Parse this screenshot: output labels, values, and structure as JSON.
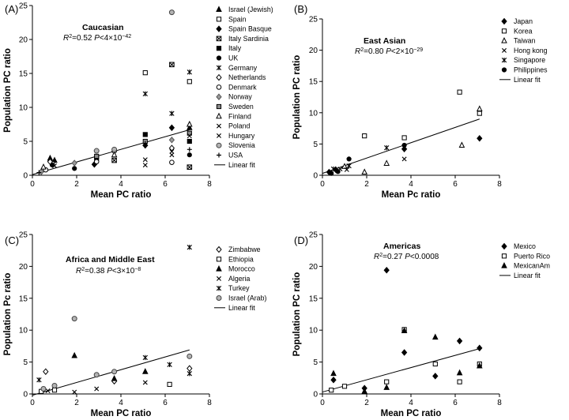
{
  "chart_data": [
    {
      "panel": "(A)",
      "type": "scatter",
      "title": "Caucasian",
      "stat": {
        "r2": "0.52",
        "p": "4",
        "exp": "−42"
      },
      "xlabel": "Mean PC ratio",
      "ylabel": "Population PC ratio",
      "xlim": [
        0,
        8
      ],
      "ylim": [
        0,
        25
      ],
      "xticks": [
        0,
        2,
        4,
        6,
        8
      ],
      "yticks": [
        0,
        5,
        10,
        15,
        20,
        25
      ],
      "legend_position": "right",
      "fit": [
        [
          0,
          0.1
        ],
        [
          7.1,
          6.7
        ]
      ],
      "series": [
        {
          "name": "Israel (Jewish)",
          "marker": "triangle-filled",
          "points": [
            [
              0.8,
              2.5
            ],
            [
              1.0,
              2.2
            ],
            [
              7.1,
              7.0
            ]
          ]
        },
        {
          "name": "Spain",
          "marker": "square-open",
          "points": [
            [
              5.1,
              15.1
            ],
            [
              7.1,
              13.8
            ],
            [
              0.9,
              1.7
            ]
          ]
        },
        {
          "name": "Spain Basque",
          "marker": "diamond-filled",
          "points": [
            [
              6.3,
              7.0
            ],
            [
              5.1,
              4.4
            ],
            [
              2.8,
              1.6
            ]
          ]
        },
        {
          "name": "Italy Sardinia",
          "marker": "square-x",
          "points": [
            [
              6.3,
              16.3
            ],
            [
              7.1,
              1.2
            ],
            [
              3.7,
              2.2
            ]
          ]
        },
        {
          "name": "Italy",
          "marker": "square-filled",
          "points": [
            [
              5.1,
              6.0
            ],
            [
              7.1,
              5.0
            ],
            [
              2.9,
              2.5
            ]
          ]
        },
        {
          "name": "UK",
          "marker": "circle-filled",
          "points": [
            [
              7.1,
              3.0
            ],
            [
              0.9,
              1.5
            ],
            [
              1.9,
              1.0
            ]
          ]
        },
        {
          "name": "Germany",
          "marker": "asterisk",
          "points": [
            [
              7.1,
              15.2
            ],
            [
              5.1,
              12.0
            ],
            [
              6.3,
              9.1
            ]
          ]
        },
        {
          "name": "Netherlands",
          "marker": "diamond-open",
          "points": [
            [
              6.3,
              4.0
            ],
            [
              3.7,
              3.5
            ],
            [
              0.8,
              2.0
            ]
          ]
        },
        {
          "name": "Denmark",
          "marker": "circle-open",
          "points": [
            [
              6.3,
              1.9
            ],
            [
              2.9,
              2.0
            ],
            [
              0.6,
              0.8
            ]
          ]
        },
        {
          "name": "Norway",
          "marker": "diamond-gray",
          "points": [
            [
              6.3,
              5.2
            ],
            [
              1.9,
              1.8
            ],
            [
              0.4,
              0.5
            ]
          ]
        },
        {
          "name": "Sweden",
          "marker": "square-gray",
          "points": [
            [
              7.1,
              6.2
            ],
            [
              5.1,
              5.0
            ],
            [
              2.9,
              2.8
            ]
          ]
        },
        {
          "name": "Finland",
          "marker": "triangle-open",
          "points": [
            [
              7.1,
              7.5
            ],
            [
              3.7,
              3.0
            ],
            [
              0.5,
              1.2
            ]
          ]
        },
        {
          "name": "Poland",
          "marker": "x",
          "points": [
            [
              7.1,
              5.8
            ],
            [
              5.1,
              1.5
            ],
            [
              6.3,
              3.5
            ]
          ]
        },
        {
          "name": "Hungary",
          "marker": "x",
          "points": [
            [
              6.3,
              3.0
            ],
            [
              5.1,
              2.3
            ],
            [
              1.0,
              1.4
            ]
          ]
        },
        {
          "name": "Slovenia",
          "marker": "circle-gray",
          "points": [
            [
              6.3,
              24.0
            ],
            [
              3.7,
              3.8
            ],
            [
              2.9,
              3.6
            ]
          ]
        },
        {
          "name": "USA",
          "marker": "plus",
          "points": [
            [
              7.1,
              3.8
            ],
            [
              5.1,
              4.7
            ],
            [
              0.3,
              0.4
            ]
          ]
        }
      ]
    },
    {
      "panel": "(B)",
      "type": "scatter",
      "title": "East Asian",
      "stat": {
        "r2": "0.80",
        "p": "2",
        "exp": "−29"
      },
      "xlabel": "Mean Pc ratio",
      "ylabel": "Population PC ratio",
      "xlim": [
        0,
        8
      ],
      "ylim": [
        0,
        25
      ],
      "xticks": [
        0,
        2,
        4,
        6,
        8
      ],
      "yticks": [
        0,
        5,
        10,
        15,
        20,
        25
      ],
      "legend_position": "right",
      "fit": [
        [
          0,
          0.3
        ],
        [
          7.1,
          9.0
        ]
      ],
      "series": [
        {
          "name": "Japan",
          "marker": "diamond-filled",
          "points": [
            [
              7.1,
              5.9
            ],
            [
              3.7,
              4.2
            ],
            [
              0.3,
              0.5
            ],
            [
              0.6,
              0.9
            ]
          ]
        },
        {
          "name": "Korea",
          "marker": "square-open",
          "points": [
            [
              6.2,
              13.3
            ],
            [
              7.1,
              9.9
            ],
            [
              1.9,
              6.3
            ],
            [
              3.7,
              6.0
            ]
          ]
        },
        {
          "name": "Taiwan",
          "marker": "triangle-open",
          "points": [
            [
              7.1,
              10.6
            ],
            [
              6.3,
              4.8
            ],
            [
              2.9,
              1.9
            ],
            [
              1.9,
              0.5
            ],
            [
              1.0,
              1.4
            ]
          ]
        },
        {
          "name": "Hong kong",
          "marker": "x",
          "points": [
            [
              3.7,
              2.6
            ],
            [
              0.8,
              1.0
            ],
            [
              1.1,
              0.9
            ]
          ]
        },
        {
          "name": "Singapore",
          "marker": "asterisk",
          "points": [
            [
              2.9,
              4.4
            ],
            [
              0.5,
              1.0
            ],
            [
              1.2,
              1.5
            ]
          ]
        },
        {
          "name": "Philippines",
          "marker": "circle-filled",
          "points": [
            [
              1.2,
              2.6
            ],
            [
              3.7,
              4.8
            ],
            [
              0.4,
              0.3
            ],
            [
              0.7,
              0.6
            ]
          ]
        }
      ]
    },
    {
      "panel": "(C)",
      "type": "scatter",
      "title": "Africa and Middle East",
      "stat": {
        "r2": "0.38",
        "p": "3",
        "exp": "−8"
      },
      "xlabel": "Mean PC ratio",
      "ylabel": "Population Pc ratio",
      "xlim": [
        0,
        8
      ],
      "ylim": [
        0,
        25
      ],
      "xticks": [
        0,
        2,
        4,
        6,
        8
      ],
      "yticks": [
        0,
        5,
        10,
        15,
        20,
        25
      ],
      "legend_position": "right",
      "fit": [
        [
          0,
          -0.2
        ],
        [
          7.1,
          6.9
        ]
      ],
      "series": [
        {
          "name": "Zimbabwe",
          "marker": "diamond-open",
          "points": [
            [
              0.6,
              3.5
            ],
            [
              3.7,
              2.0
            ],
            [
              7.1,
              4.0
            ]
          ]
        },
        {
          "name": "Ethiopia",
          "marker": "square-open",
          "points": [
            [
              6.2,
              1.5
            ],
            [
              0.4,
              0.4
            ],
            [
              1.0,
              0.6
            ]
          ]
        },
        {
          "name": "Morocco",
          "marker": "triangle-filled",
          "points": [
            [
              1.9,
              6.0
            ],
            [
              5.1,
              3.5
            ],
            [
              3.7,
              2.4
            ]
          ]
        },
        {
          "name": "Algeria",
          "marker": "x",
          "points": [
            [
              1.9,
              0.3
            ],
            [
              2.9,
              0.8
            ],
            [
              5.1,
              1.8
            ],
            [
              0.7,
              0.5
            ]
          ]
        },
        {
          "name": "Turkey",
          "marker": "asterisk",
          "points": [
            [
              7.1,
              23.0
            ],
            [
              5.1,
              5.7
            ],
            [
              6.2,
              4.6
            ],
            [
              0.3,
              2.2
            ],
            [
              7.1,
              3.2
            ]
          ]
        },
        {
          "name": "Israel (Arab)",
          "marker": "circle-gray",
          "points": [
            [
              1.9,
              11.8
            ],
            [
              7.1,
              5.9
            ],
            [
              2.9,
              3.0
            ],
            [
              3.7,
              3.5
            ],
            [
              1.0,
              1.3
            ],
            [
              0.5,
              0.8
            ]
          ]
        }
      ]
    },
    {
      "panel": "(D)",
      "type": "scatter",
      "title": "Americas",
      "stat": {
        "r2": "0.27",
        "p": "0.0008"
      },
      "xlabel": "Mean PC ratio",
      "ylabel": "Population PC ratio",
      "xlim": [
        0,
        8
      ],
      "ylim": [
        0,
        25
      ],
      "xticks": [
        0,
        2,
        4,
        6,
        8
      ],
      "yticks": [
        0,
        5,
        10,
        15,
        20,
        25
      ],
      "legend_position": "right",
      "fit": [
        [
          0,
          0.3
        ],
        [
          7.1,
          7.1
        ]
      ],
      "series": [
        {
          "name": "Mexico",
          "marker": "diamond-filled",
          "points": [
            [
              2.9,
              19.4
            ],
            [
              3.7,
              6.5
            ],
            [
              6.2,
              8.3
            ],
            [
              7.1,
              7.2
            ],
            [
              5.1,
              2.8
            ],
            [
              0.5,
              2.2
            ],
            [
              1.9,
              0.9
            ]
          ]
        },
        {
          "name": "Puerto Rico",
          "marker": "square-open",
          "points": [
            [
              3.7,
              10.1
            ],
            [
              6.2,
              1.9
            ],
            [
              7.1,
              4.7
            ],
            [
              5.1,
              4.7
            ],
            [
              2.9,
              1.9
            ],
            [
              0.4,
              0.6
            ],
            [
              1.0,
              1.2
            ]
          ]
        },
        {
          "name": "MexicanAm",
          "marker": "triangle-filled",
          "points": [
            [
              3.7,
              9.9
            ],
            [
              5.1,
              8.9
            ],
            [
              6.2,
              3.3
            ],
            [
              7.1,
              4.4
            ],
            [
              0.5,
              3.2
            ],
            [
              2.9,
              1.0
            ],
            [
              1.9,
              0.4
            ]
          ]
        }
      ]
    }
  ]
}
